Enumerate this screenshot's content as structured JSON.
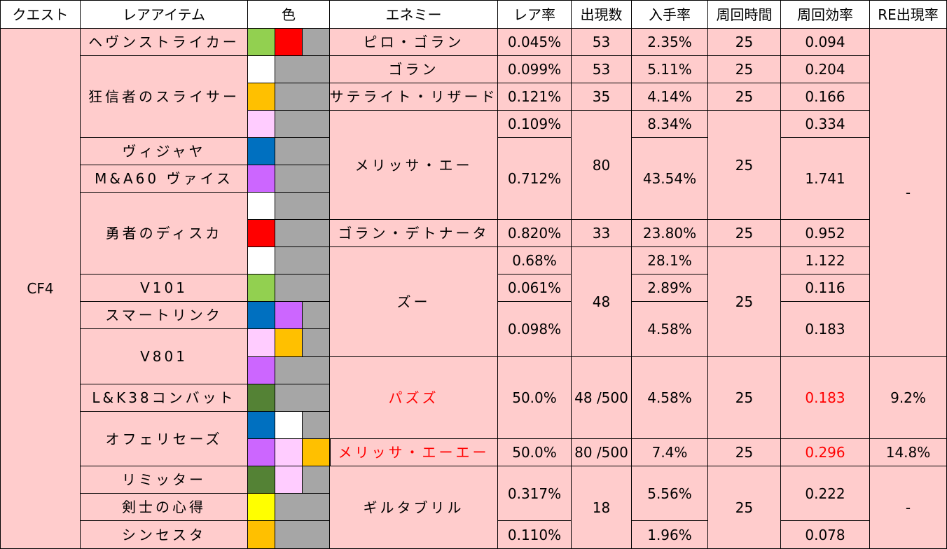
{
  "headers": [
    "クエスト",
    "レアアイテム",
    "色",
    "エネミー",
    "レア率",
    "出現数",
    "入手率",
    "周回時間",
    "周回効率",
    "RE出現率"
  ],
  "quest": "CF4",
  "items": [
    "ヘヴンストライカー",
    "狂信者のスライサー",
    "ヴィジャヤ",
    "M&A60 ヴァイス",
    "勇者のディスカ",
    "V101",
    "スマートリンク",
    "V801",
    "L&K38コンバット",
    "オフェリセーズ",
    "リミッター",
    "剣士の心得",
    "シンセスタ"
  ],
  "enemies": [
    "ピロ・ゴラン",
    "ゴラン",
    "サテライト・リザード",
    "メリッサ・エー",
    "ゴラン・デトナータ",
    "ズー",
    "パズズ",
    "メリッサ・エーエー",
    "ギルタブリル"
  ],
  "rare_rates": [
    "0.045%",
    "0.099%",
    "0.121%",
    "0.109%",
    "0.712%",
    "0.820%",
    "0.68%",
    "0.061%",
    "0.098%",
    "50.0%",
    "50.0%",
    "0.317%",
    "0.110%"
  ],
  "appear_counts": [
    "53",
    "53",
    "35",
    "80",
    "33",
    "48",
    "48 /500",
    "80 /500",
    "18"
  ],
  "obtain_rates": [
    "2.35%",
    "5.11%",
    "4.14%",
    "8.34%",
    "43.54%",
    "23.80%",
    "28.1%",
    "2.89%",
    "4.58%",
    "4.58%",
    "7.4%",
    "5.56%",
    "1.96%"
  ],
  "loop_times": [
    "25",
    "25",
    "25",
    "25",
    "25",
    "25",
    "25",
    "25",
    "25"
  ],
  "efficiencies": [
    "0.094",
    "0.204",
    "0.166",
    "0.334",
    "1.741",
    "0.952",
    "1.122",
    "0.116",
    "0.183",
    "0.183",
    "0.296",
    "0.222",
    "0.078"
  ],
  "re_rates": [
    "-",
    "9.2%",
    "14.8%",
    "-"
  ],
  "colors": {
    "cell_bg": "#ffcccc",
    "header_bg": "#ffffff",
    "highlight_text": "#ff0000",
    "swatch_light_green": "#92d050",
    "swatch_red": "#ff0000",
    "swatch_gray": "#a6a6a6",
    "swatch_white": "#ffffff",
    "swatch_orange": "#ffc000",
    "swatch_pink": "#ffccff",
    "swatch_blue": "#0070c0",
    "swatch_purple": "#cc66ff",
    "swatch_dark_green": "#548235",
    "swatch_yellow": "#ffff00"
  }
}
